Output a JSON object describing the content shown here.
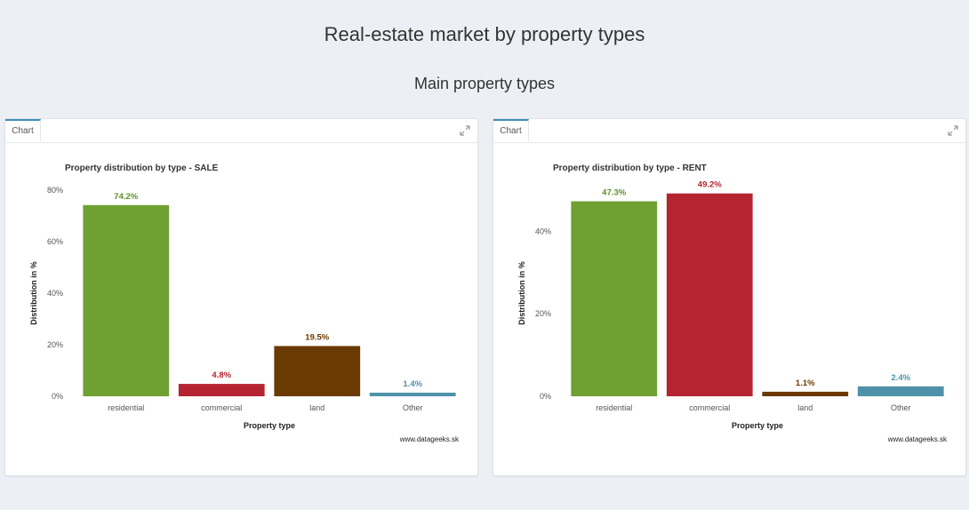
{
  "header": {
    "title": "Real-estate market by property types",
    "subtitle": "Main property types"
  },
  "panels": [
    {
      "tab_label": "Chart",
      "expand_icon": "expand-icon"
    },
    {
      "tab_label": "Chart",
      "expand_icon": "expand-icon"
    }
  ],
  "chart_data": [
    {
      "type": "bar",
      "title": "Property distribution by type - SALE",
      "xlabel": "Property type",
      "ylabel": "Distribution in %",
      "categories": [
        "residential",
        "commercial",
        "land",
        "Other"
      ],
      "values": [
        74.2,
        4.8,
        19.5,
        1.4
      ],
      "data_labels": [
        "74.2%",
        "4.8%",
        "19.5%",
        "1.4%"
      ],
      "colors": [
        "#6ea132",
        "#b52531",
        "#6b3a02",
        "#4f91a8"
      ],
      "label_colors": [
        "#5d8f2a",
        "#b52531",
        "#6b3a02",
        "#4f91a8"
      ],
      "yticks": [
        0,
        20,
        40,
        60,
        80
      ],
      "ytick_labels": [
        "0%",
        "20%",
        "40%",
        "60%",
        "80%"
      ],
      "ylim": [
        0,
        80
      ],
      "grid": false,
      "caption": "www.datageeks.sk"
    },
    {
      "type": "bar",
      "title": "Property distribution by type - RENT",
      "xlabel": "Property type",
      "ylabel": "Distribution in %",
      "categories": [
        "residential",
        "commercial",
        "land",
        "Other"
      ],
      "values": [
        47.3,
        49.2,
        1.1,
        2.4
      ],
      "data_labels": [
        "47.3%",
        "49.2%",
        "1.1%",
        "2.4%"
      ],
      "colors": [
        "#6ea132",
        "#b52531",
        "#6b3a02",
        "#4f91a8"
      ],
      "label_colors": [
        "#5d8f2a",
        "#b52531",
        "#6b3a02",
        "#4f91a8"
      ],
      "yticks": [
        0,
        20,
        40
      ],
      "ytick_labels": [
        "0%",
        "20%",
        "40%"
      ],
      "ylim": [
        0,
        50
      ],
      "grid": false,
      "caption": "www.datageeks.sk"
    }
  ]
}
